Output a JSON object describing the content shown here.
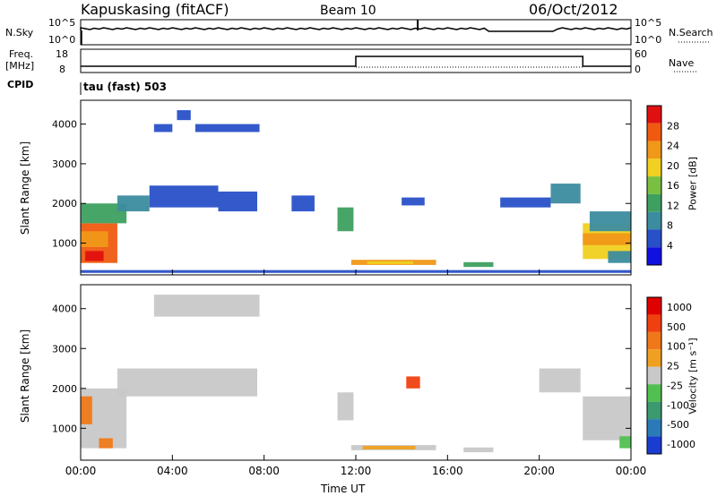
{
  "header": {
    "radar": "Kapuskasing (fitACF)",
    "beam": "Beam 10",
    "date": "06/Oct/2012"
  },
  "noise_panel": {
    "left_label": "N.Sky",
    "right_label": "N.Search",
    "left_ticks": [
      "10^5",
      "10^0"
    ],
    "right_ticks": [
      "10^5",
      "10^0"
    ]
  },
  "freq_panel": {
    "left_label_1": "Freq.",
    "left_label_2": "[MHz]",
    "right_label": "Nave",
    "left_ticks": [
      "18",
      "8"
    ],
    "right_ticks": [
      "60",
      "0"
    ]
  },
  "cpid": {
    "label": "CPID",
    "value": "tau (fast) 503"
  },
  "chart_data": [
    {
      "type": "heatmap",
      "name": "power",
      "ylabel": "Slant Range [km]",
      "ylim": [
        200,
        4600
      ],
      "yticks": [
        "1000",
        "2000",
        "3000",
        "4000"
      ],
      "xlim_hours": [
        0,
        24
      ],
      "colorbar": {
        "label": "Power [dB]",
        "ticks": [
          "4",
          "8",
          "12",
          "16",
          "20",
          "24",
          "28"
        ],
        "colors": [
          "#1010e0",
          "#2850c8",
          "#3c8ca0",
          "#3ea060",
          "#7ac040",
          "#f0d020",
          "#f09818",
          "#f05a10",
          "#e01010"
        ]
      },
      "regions": [
        {
          "t0": 0.0,
          "t1": 1.6,
          "r0": 500,
          "r1": 1500,
          "level": 7
        },
        {
          "t0": 0.2,
          "t1": 1.0,
          "r0": 550,
          "r1": 800,
          "level": 8
        },
        {
          "t0": 0.0,
          "t1": 1.2,
          "r0": 900,
          "r1": 1300,
          "level": 6
        },
        {
          "t0": 0.0,
          "t1": 2.0,
          "r0": 1500,
          "r1": 2000,
          "level": 3
        },
        {
          "t0": 1.6,
          "t1": 3.0,
          "r0": 1800,
          "r1": 2200,
          "level": 2
        },
        {
          "t0": 3.0,
          "t1": 6.0,
          "r0": 1900,
          "r1": 2450,
          "level": 1
        },
        {
          "t0": 6.0,
          "t1": 7.7,
          "r0": 1800,
          "r1": 2300,
          "level": 1
        },
        {
          "t0": 3.2,
          "t1": 4.0,
          "r0": 3800,
          "r1": 4000,
          "level": 1
        },
        {
          "t0": 4.2,
          "t1": 4.8,
          "r0": 4100,
          "r1": 4350,
          "level": 1
        },
        {
          "t0": 5.0,
          "t1": 7.8,
          "r0": 3800,
          "r1": 4000,
          "level": 1
        },
        {
          "t0": 9.2,
          "t1": 10.2,
          "r0": 1800,
          "r1": 2200,
          "level": 1
        },
        {
          "t0": 11.2,
          "t1": 11.9,
          "r0": 1300,
          "r1": 1900,
          "level": 3
        },
        {
          "t0": 11.8,
          "t1": 15.5,
          "r0": 450,
          "r1": 580,
          "level": 6
        },
        {
          "t0": 12.5,
          "t1": 14.5,
          "r0": 470,
          "r1": 540,
          "level": 5
        },
        {
          "t0": 14.0,
          "t1": 15.0,
          "r0": 1950,
          "r1": 2150,
          "level": 1
        },
        {
          "t0": 16.7,
          "t1": 18.0,
          "r0": 400,
          "r1": 520,
          "level": 3
        },
        {
          "t0": 18.3,
          "t1": 20.5,
          "r0": 1900,
          "r1": 2150,
          "level": 1
        },
        {
          "t0": 20.5,
          "t1": 21.8,
          "r0": 2000,
          "r1": 2500,
          "level": 2
        },
        {
          "t0": 21.9,
          "t1": 24.0,
          "r0": 600,
          "r1": 1500,
          "level": 5
        },
        {
          "t0": 21.9,
          "t1": 24.0,
          "r0": 950,
          "r1": 1250,
          "level": 6
        },
        {
          "t0": 22.2,
          "t1": 24.0,
          "r0": 1300,
          "r1": 1800,
          "level": 2
        },
        {
          "t0": 23.0,
          "t1": 24.0,
          "r0": 500,
          "r1": 800,
          "level": 2
        },
        {
          "t0": 0.0,
          "t1": 24.0,
          "r0": 250,
          "r1": 320,
          "level": 1
        }
      ]
    },
    {
      "type": "heatmap",
      "name": "velocity",
      "ylabel": "Slant Range [km]",
      "xlabel": "Time UT",
      "ylim": [
        200,
        4600
      ],
      "yticks": [
        "1000",
        "2000",
        "3000",
        "4000"
      ],
      "xticks": [
        "00:00",
        "04:00",
        "08:00",
        "12:00",
        "16:00",
        "20:00",
        "00:00"
      ],
      "xlim_hours": [
        0,
        24
      ],
      "colorbar": {
        "label": "Velocity [m s⁻¹]",
        "ticks": [
          "1000",
          "500",
          "100",
          "25",
          "-25",
          "-100",
          "-500",
          "-1000"
        ],
        "colors": [
          "#1a3cd0",
          "#2a7ab8",
          "#3c9a70",
          "#52c050",
          "#c8c8c8",
          "#f0a020",
          "#f07818",
          "#f04010",
          "#e00000"
        ]
      },
      "regions": [
        {
          "t0": 0.0,
          "t1": 2.0,
          "r0": 500,
          "r1": 2000,
          "level": 4
        },
        {
          "t0": 0.8,
          "t1": 1.4,
          "r0": 500,
          "r1": 750,
          "level": 6
        },
        {
          "t0": 0.0,
          "t1": 0.5,
          "r0": 1100,
          "r1": 1800,
          "level": 6
        },
        {
          "t0": 1.6,
          "t1": 7.7,
          "r0": 1800,
          "r1": 2500,
          "level": 4
        },
        {
          "t0": 3.2,
          "t1": 7.8,
          "r0": 3800,
          "r1": 4350,
          "level": 4
        },
        {
          "t0": 11.2,
          "t1": 11.9,
          "r0": 1200,
          "r1": 1900,
          "level": 4
        },
        {
          "t0": 11.8,
          "t1": 15.5,
          "r0": 450,
          "r1": 580,
          "level": 4
        },
        {
          "t0": 12.3,
          "t1": 14.6,
          "r0": 470,
          "r1": 560,
          "level": 5
        },
        {
          "t0": 16.7,
          "t1": 18.0,
          "r0": 400,
          "r1": 520,
          "level": 4
        },
        {
          "t0": 20.0,
          "t1": 21.8,
          "r0": 1900,
          "r1": 2500,
          "level": 4
        },
        {
          "t0": 21.9,
          "t1": 24.0,
          "r0": 700,
          "r1": 1800,
          "level": 4
        },
        {
          "t0": 23.5,
          "t1": 24.0,
          "r0": 500,
          "r1": 800,
          "level": 3
        },
        {
          "t0": 14.2,
          "t1": 14.8,
          "r0": 2000,
          "r1": 2300,
          "level": 7
        }
      ]
    }
  ]
}
